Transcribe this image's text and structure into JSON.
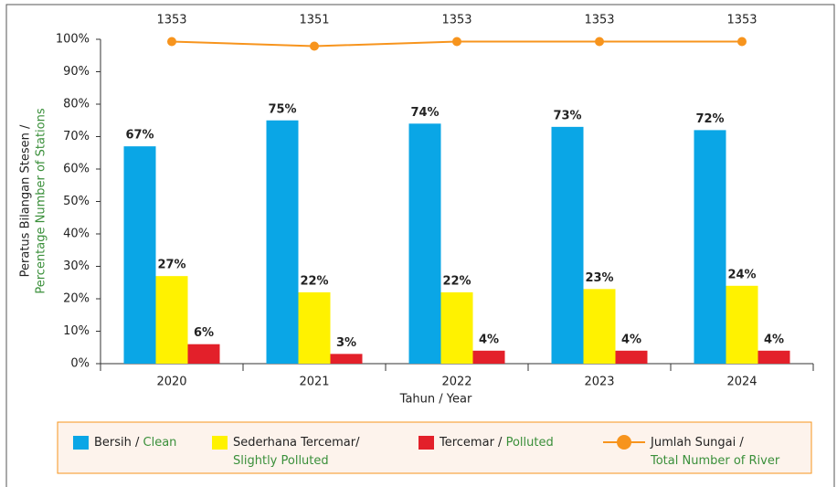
{
  "chart_data": {
    "type": "bar",
    "ylabel": [
      "Peratus Bilangan Stesen /",
      "Percentage Number of Stations"
    ],
    "xlabel": "Tahun / Year",
    "categories": [
      "2020",
      "2021",
      "2022",
      "2023",
      "2024"
    ],
    "ylim": [
      0,
      100
    ],
    "yticks": [
      {
        "value": 0,
        "label": "0%"
      },
      {
        "value": 10,
        "label": "10%"
      },
      {
        "value": 20,
        "label": "20%"
      },
      {
        "value": 30,
        "label": "30%"
      },
      {
        "value": 40,
        "label": "40%"
      },
      {
        "value": 50,
        "label": "50%"
      },
      {
        "value": 60,
        "label": "60%"
      },
      {
        "value": 70,
        "label": "70%"
      },
      {
        "value": 80,
        "label": "80%"
      },
      {
        "value": 90,
        "label": "90%"
      },
      {
        "value": 100,
        "label": "100%"
      }
    ],
    "y2lim": [
      1212,
      1354
    ],
    "series": [
      {
        "name": "Bersih / Clean",
        "color": "#0aa6e6",
        "values": [
          67,
          75,
          74,
          73,
          72
        ],
        "value_labels": [
          "67%",
          "75%",
          "74%",
          "73%",
          "72%"
        ]
      },
      {
        "name": "Sederhana Tercemar/ Slightly Polluted",
        "color": "#fff200",
        "values": [
          27,
          22,
          22,
          23,
          24
        ],
        "value_labels": [
          "27%",
          "22%",
          "22%",
          "23%",
          "24%"
        ]
      },
      {
        "name": "Tercemar / Polluted",
        "color": "#e3202a",
        "values": [
          6,
          3,
          4,
          4,
          4
        ],
        "value_labels": [
          "6%",
          "3%",
          "4%",
          "4%",
          "4%"
        ]
      },
      {
        "name": "Jumlah Sungai / Total Number of River",
        "color": "#f7941d",
        "type": "line",
        "axis": "y2",
        "values": [
          1353,
          1351,
          1353,
          1353,
          1353
        ]
      }
    ]
  }
}
